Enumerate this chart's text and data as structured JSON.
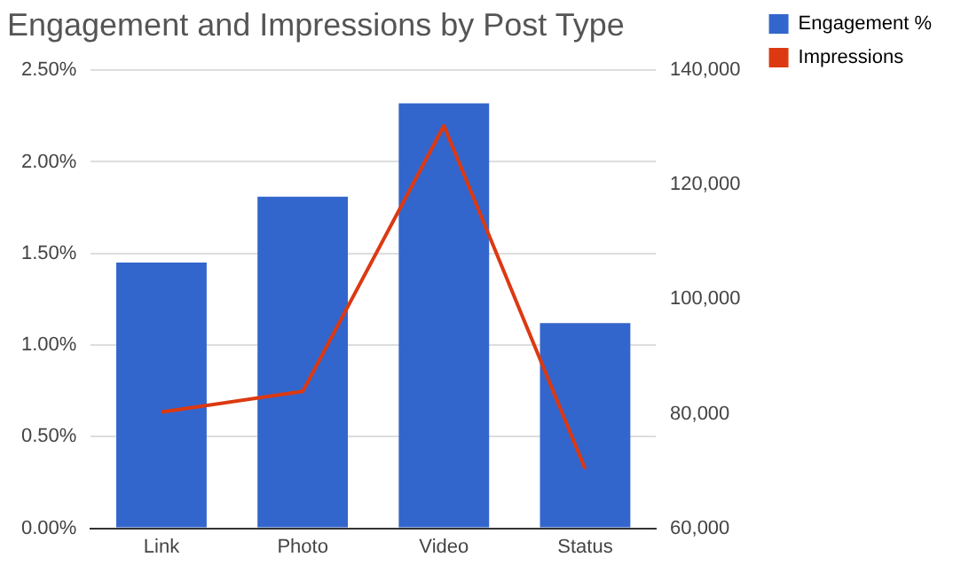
{
  "chart_data": {
    "type": "bar",
    "title": "Engagement and Impressions by Post Type",
    "categories": [
      "Link",
      "Photo",
      "Video",
      "Status"
    ],
    "series": [
      {
        "name": "Engagement %",
        "color": "#3366cc",
        "values": [
          1.45,
          1.81,
          2.32,
          1.12
        ]
      },
      {
        "name": "Impressions",
        "type": "line",
        "axis": "y2",
        "color": "#dc3912",
        "values": [
          80300,
          83900,
          130300,
          70400
        ]
      }
    ],
    "ylim": [
      0,
      2.5
    ],
    "yticks": [
      {
        "value": 0,
        "label": "0.00%"
      },
      {
        "value": 0.5,
        "label": "0.50%"
      },
      {
        "value": 1,
        "label": "1.00%"
      },
      {
        "value": 1.5,
        "label": "1.50%"
      },
      {
        "value": 2,
        "label": "2.00%"
      },
      {
        "value": 2.5,
        "label": "2.50%"
      }
    ],
    "y2lim": [
      60000,
      140000
    ],
    "y2ticks": [
      {
        "value": 60000,
        "label": "60,000"
      },
      {
        "value": 80000,
        "label": "80,000"
      },
      {
        "value": 100000,
        "label": "100,000"
      },
      {
        "value": 120000,
        "label": "120,000"
      },
      {
        "value": 140000,
        "label": "140,000"
      }
    ],
    "grid": "y",
    "legend": "top right",
    "marker": "none"
  }
}
